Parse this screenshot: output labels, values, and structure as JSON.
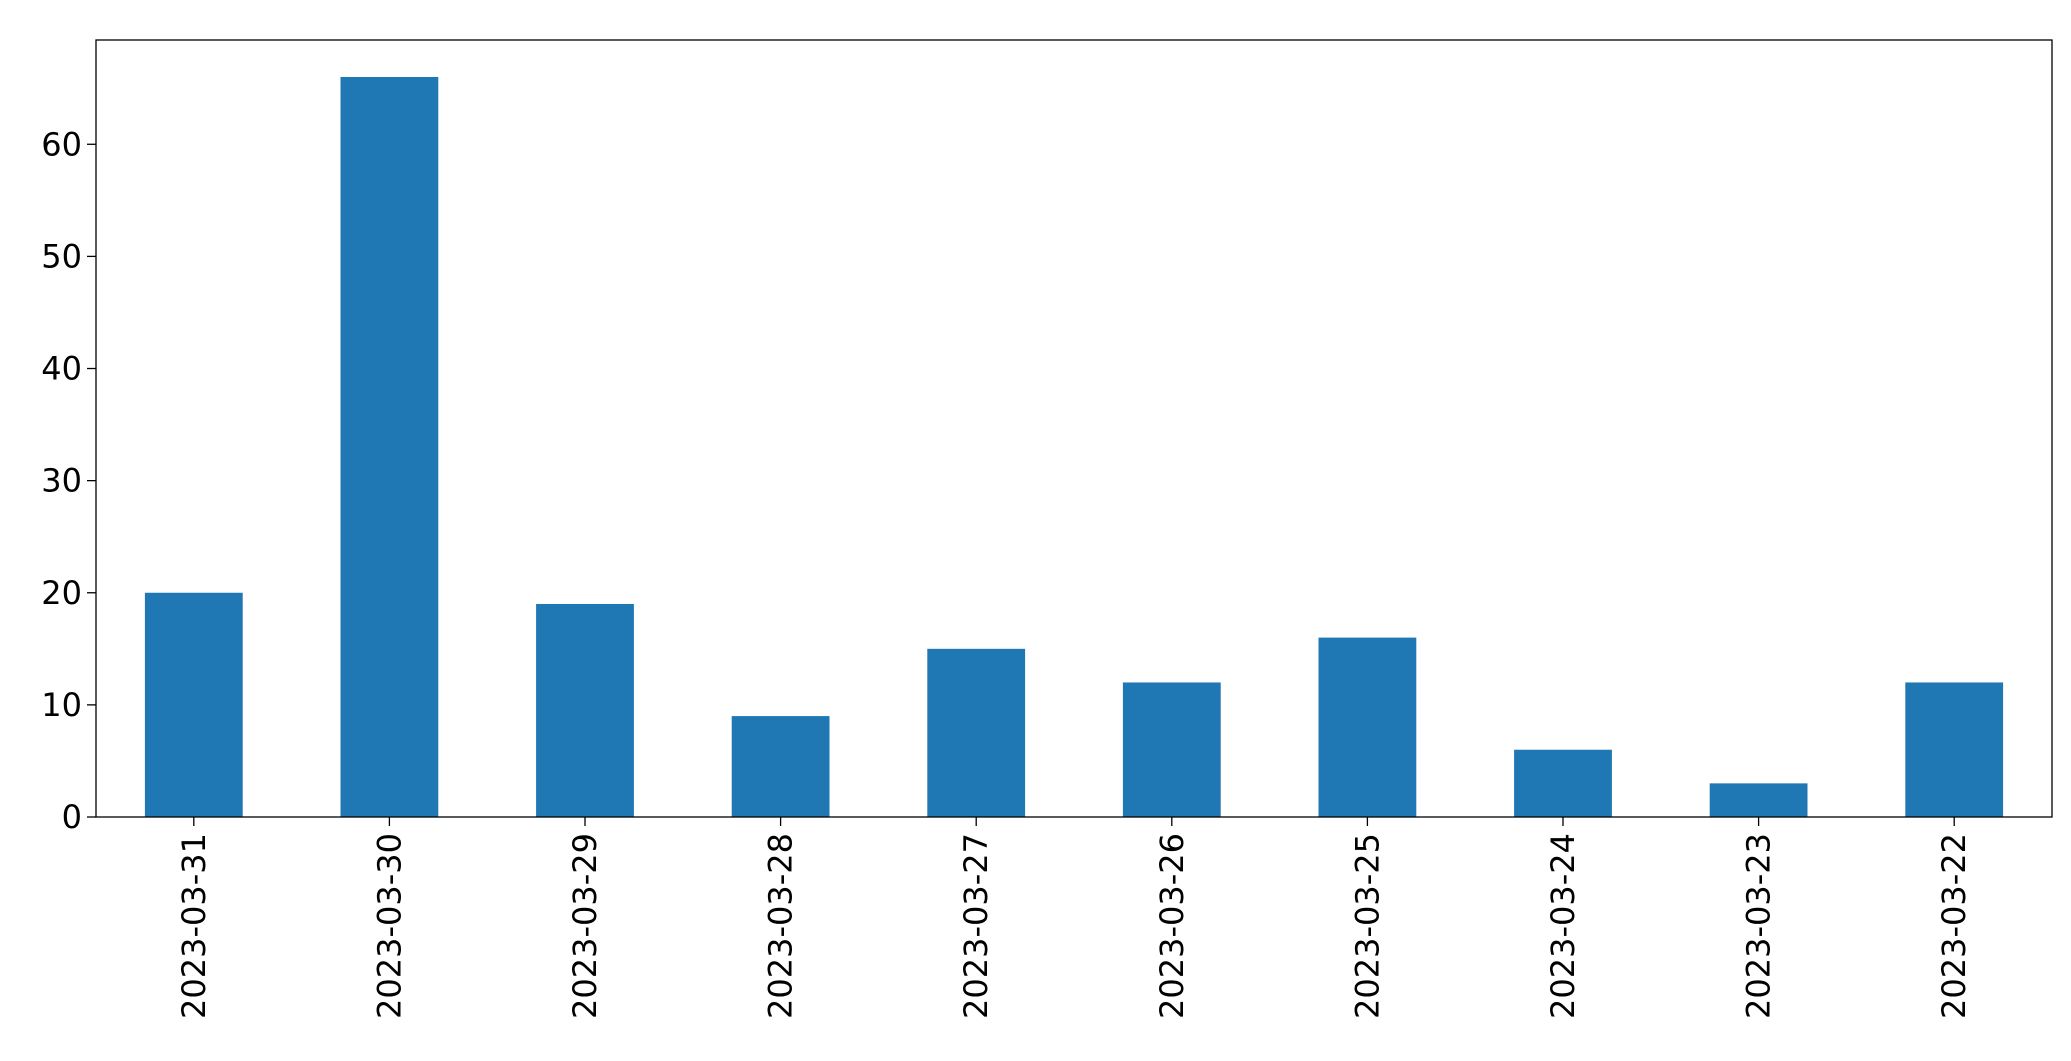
{
  "chart_data": {
    "type": "bar",
    "categories": [
      "2023-03-31",
      "2023-03-30",
      "2023-03-29",
      "2023-03-28",
      "2023-03-27",
      "2023-03-26",
      "2023-03-25",
      "2023-03-24",
      "2023-03-23",
      "2023-03-22"
    ],
    "values": [
      20,
      66,
      19,
      9,
      15,
      12,
      16,
      6,
      3,
      12
    ],
    "color": "#1f77b4",
    "ylim": [
      0,
      69.3
    ],
    "yticks": [
      0,
      10,
      20,
      30,
      40,
      50,
      60
    ],
    "grid": false
  }
}
